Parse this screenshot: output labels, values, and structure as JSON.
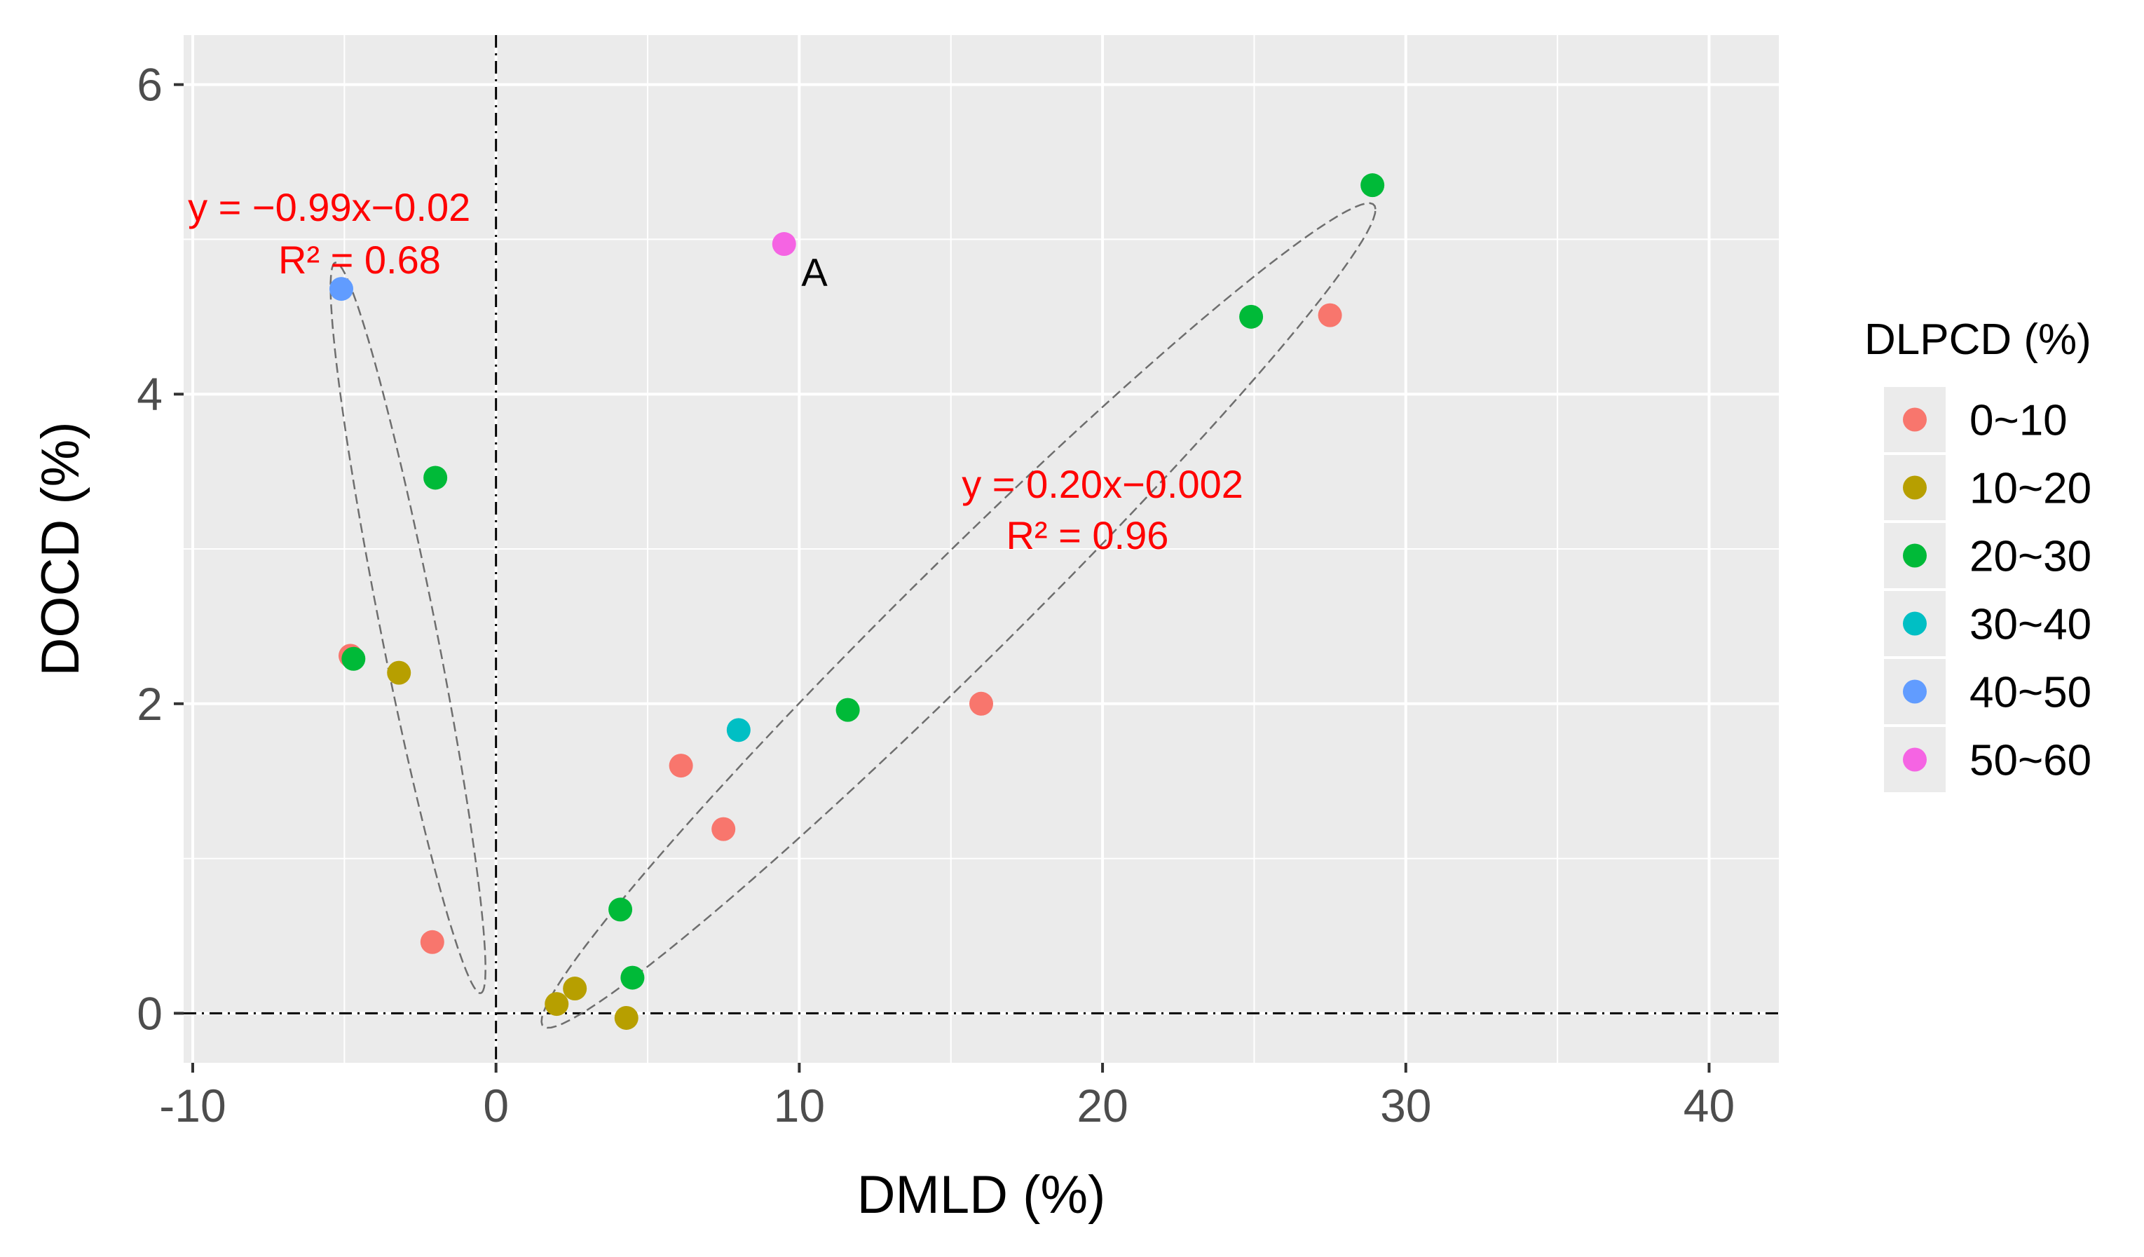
{
  "chart_data": {
    "type": "scatter",
    "xlabel": "DMLD (%)",
    "ylabel": "DOCD (%)",
    "xlim": [
      -10.3,
      42.3
    ],
    "ylim": [
      -0.32,
      6.32
    ],
    "x_ticks": [
      -10,
      0,
      10,
      20,
      30,
      40
    ],
    "x_tick_labels": [
      "-10",
      "0",
      "10",
      "20",
      "30",
      "40"
    ],
    "y_ticks": [
      0,
      2,
      4,
      6
    ],
    "y_tick_labels": [
      "0",
      "2",
      "4",
      "6"
    ],
    "grid": true,
    "legend": {
      "title": "DLPCD  (%)",
      "position": "right",
      "entries": [
        {
          "label": "0~10",
          "color": "#F8766D"
        },
        {
          "label": "10~20",
          "color": "#B79F00"
        },
        {
          "label": "20~30",
          "color": "#00BA38"
        },
        {
          "label": "30~40",
          "color": "#00BFC4"
        },
        {
          "label": "40~50",
          "color": "#619CFF"
        },
        {
          "label": "50~60",
          "color": "#F564E3"
        }
      ]
    },
    "series": [
      {
        "name": "0~10",
        "color": "#F8766D",
        "points": [
          [
            -4.8,
            2.31
          ],
          [
            -2.1,
            0.46
          ],
          [
            6.1,
            1.6
          ],
          [
            7.5,
            1.19
          ],
          [
            16.0,
            2.0
          ],
          [
            27.5,
            4.51
          ]
        ]
      },
      {
        "name": "10~20",
        "color": "#B79F00",
        "points": [
          [
            -3.2,
            2.2
          ],
          [
            2.0,
            0.06
          ],
          [
            2.6,
            0.16
          ],
          [
            4.3,
            -0.03
          ]
        ]
      },
      {
        "name": "20~30",
        "color": "#00BA38",
        "points": [
          [
            -4.7,
            2.29
          ],
          [
            -2.0,
            3.46
          ],
          [
            4.1,
            0.67
          ],
          [
            4.5,
            0.23
          ],
          [
            11.6,
            1.96
          ],
          [
            24.9,
            4.5
          ],
          [
            28.9,
            5.35
          ]
        ]
      },
      {
        "name": "30~40",
        "color": "#00BFC4",
        "points": [
          [
            8.0,
            1.83
          ]
        ]
      },
      {
        "name": "40~50",
        "color": "#619CFF",
        "points": [
          [
            -5.1,
            4.68
          ]
        ]
      },
      {
        "name": "50~60",
        "color": "#F564E3",
        "points": [
          [
            9.5,
            4.97
          ]
        ]
      }
    ],
    "reference_lines": [
      {
        "orientation": "vertical",
        "value": 0,
        "style": "dotted-dash"
      },
      {
        "orientation": "horizontal",
        "value": 0,
        "style": "dotted-dash"
      }
    ],
    "ellipses": [
      {
        "cx": -2.9,
        "cy": 2.49,
        "rx": 2.55,
        "ry": 1.03,
        "vertices": [
          [
            -5.3,
            4.85
          ],
          [
            -0.5,
            0.13
          ]
        ],
        "style": "dashed"
      },
      {
        "cx": 15.25,
        "cy": 2.57,
        "rx": 14.5,
        "ry": 0.84,
        "vertices": [
          [
            1.5,
            -0.05
          ],
          [
            29.0,
            5.2
          ]
        ],
        "style": "dashed"
      }
    ],
    "annotations": [
      {
        "text": "y = −0.99x−0.02",
        "x": -5.5,
        "y": 5.12,
        "color": "#ff0000"
      },
      {
        "text": "R² = 0.68",
        "x": -4.5,
        "y": 4.78,
        "color": "#ff0000"
      },
      {
        "text": "y = 0.20x−0.002",
        "x": 20.0,
        "y": 3.33,
        "color": "#ff0000"
      },
      {
        "text": "R² = 0.96",
        "x": 19.5,
        "y": 3.0,
        "color": "#ff0000"
      },
      {
        "text": "A",
        "x": 10.5,
        "y": 4.7,
        "color": "#000000"
      }
    ]
  }
}
